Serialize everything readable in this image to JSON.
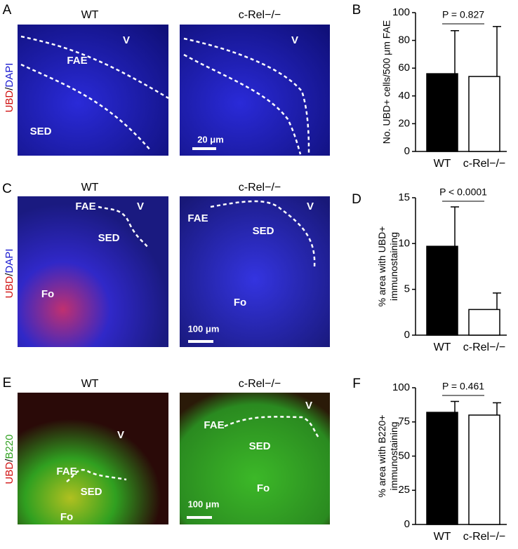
{
  "panel_labels": [
    "A",
    "B",
    "C",
    "D",
    "E",
    "F"
  ],
  "images": [
    {
      "stain": [
        "UBD",
        "/",
        "DAPI"
      ],
      "panels": [
        {
          "title": "WT",
          "labels": [
            "V",
            "FAE",
            "SED"
          ]
        },
        {
          "title": "c-Rel−/−",
          "labels": [
            "V"
          ],
          "scale": "20 μm"
        }
      ]
    },
    {
      "stain": [
        "UBD",
        "/",
        "DAPI"
      ],
      "panels": [
        {
          "title": "WT",
          "labels": [
            "FAE",
            "V",
            "SED",
            "Fo"
          ]
        },
        {
          "title": "c-Rel−/−",
          "labels": [
            "FAE",
            "V",
            "SED",
            "Fo"
          ],
          "scale": "100 μm"
        }
      ]
    },
    {
      "stain": [
        "UBD",
        "/",
        "B220"
      ],
      "panels": [
        {
          "title": "WT",
          "labels": [
            "V",
            "FAE",
            "SED",
            "Fo"
          ]
        },
        {
          "title": "c-Rel−/−",
          "labels": [
            "FAE",
            "V",
            "SED",
            "Fo"
          ],
          "scale": "100 μm"
        }
      ]
    }
  ],
  "chart_data": [
    {
      "type": "bar",
      "ylabel": [
        "No. UBD+ cells/500 μm FAE"
      ],
      "categories": [
        "WT",
        "c-Rel−/−"
      ],
      "values": [
        56,
        54
      ],
      "errors": [
        31,
        36
      ],
      "colors": [
        "#000000",
        "#ffffff"
      ],
      "ylim": [
        0,
        100
      ],
      "yticks": [
        0,
        20,
        40,
        60,
        80,
        100
      ],
      "annotation": "P = 0.827"
    },
    {
      "type": "bar",
      "ylabel": [
        "% area with UBD+",
        "immunostaining"
      ],
      "categories": [
        "WT",
        "c-Rel−/−"
      ],
      "values": [
        9.7,
        2.8
      ],
      "errors": [
        4.3,
        1.8
      ],
      "colors": [
        "#000000",
        "#ffffff"
      ],
      "ylim": [
        0,
        15
      ],
      "yticks": [
        0,
        5,
        10,
        15
      ],
      "annotation": "P < 0.0001"
    },
    {
      "type": "bar",
      "ylabel": [
        "% area with B220+",
        "immunostaining"
      ],
      "categories": [
        "WT",
        "c-Rel−/−"
      ],
      "values": [
        82,
        80
      ],
      "errors": [
        8,
        9
      ],
      "colors": [
        "#000000",
        "#ffffff"
      ],
      "ylim": [
        0,
        100
      ],
      "yticks": [
        0,
        25,
        50,
        75,
        100
      ],
      "annotation": "P = 0.461"
    }
  ]
}
